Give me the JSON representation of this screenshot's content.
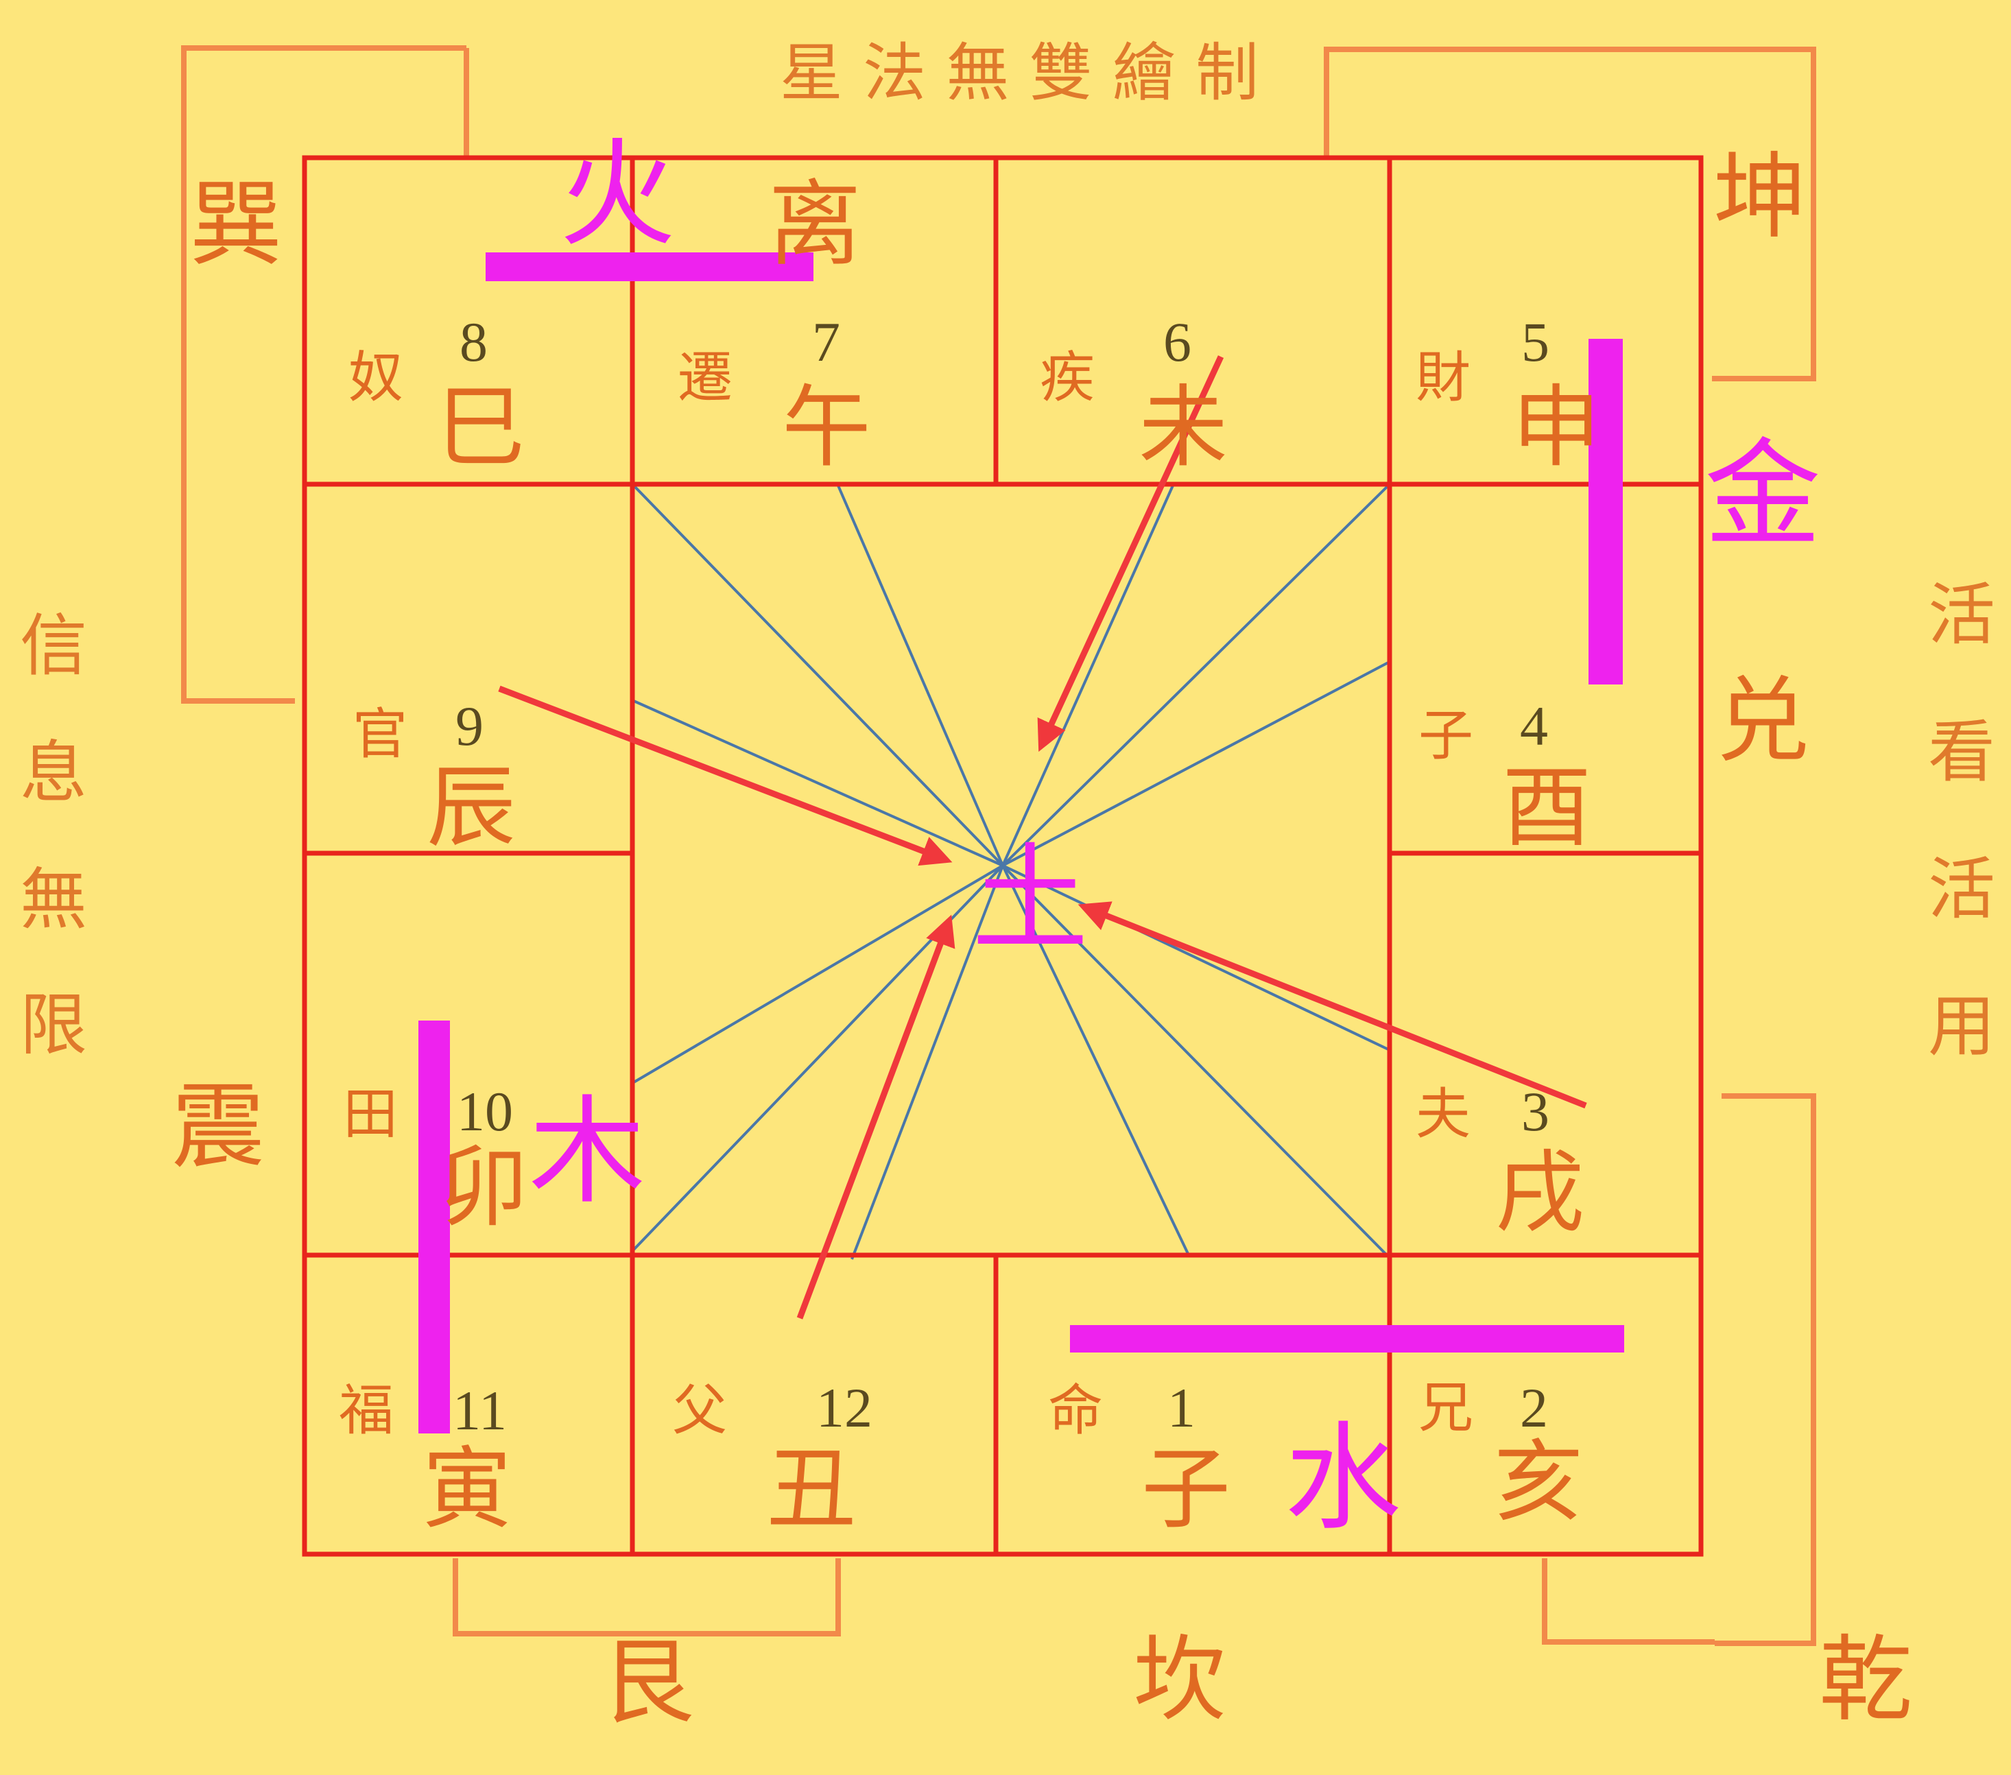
{
  "colors": {
    "background": "#fde67c",
    "grid": "#e8241c",
    "bracket": "#f2894a",
    "text": "#e06a22",
    "element": "#ee22ee",
    "rays": "#4a77a8",
    "arrow": "#f0383c"
  },
  "top_title": "星 法 無 雙 繪 制",
  "left_caption": [
    "信",
    "息",
    "無",
    "限"
  ],
  "right_caption": [
    "活",
    "看",
    "活",
    "用"
  ],
  "trigrams": {
    "xun": "巽",
    "li": "离",
    "kun": "坤",
    "dui": "兑",
    "zhen": "震",
    "gen": "艮",
    "kan": "坎",
    "qian": "乾"
  },
  "palaces": [
    {
      "palace": "奴",
      "number": "8",
      "branch": "巳"
    },
    {
      "palace": "遷",
      "number": "7",
      "branch": "午"
    },
    {
      "palace": "疾",
      "number": "6",
      "branch": "未"
    },
    {
      "palace": "財",
      "number": "5",
      "branch": "申"
    },
    {
      "palace": "子",
      "number": "4",
      "branch": "酉"
    },
    {
      "palace": "夫",
      "number": "3",
      "branch": "戌"
    },
    {
      "palace": "兄",
      "number": "2",
      "branch": "亥"
    },
    {
      "palace": "命",
      "number": "1",
      "branch": "子"
    },
    {
      "palace": "父",
      "number": "12",
      "branch": "丑"
    },
    {
      "palace": "福",
      "number": "11",
      "branch": "寅"
    },
    {
      "palace": "田",
      "number": "10",
      "branch": "卯"
    },
    {
      "palace": "官",
      "number": "9",
      "branch": "辰"
    }
  ],
  "elements": {
    "fire": "火",
    "metal": "金",
    "wood": "木",
    "water": "水",
    "earth": "土"
  }
}
